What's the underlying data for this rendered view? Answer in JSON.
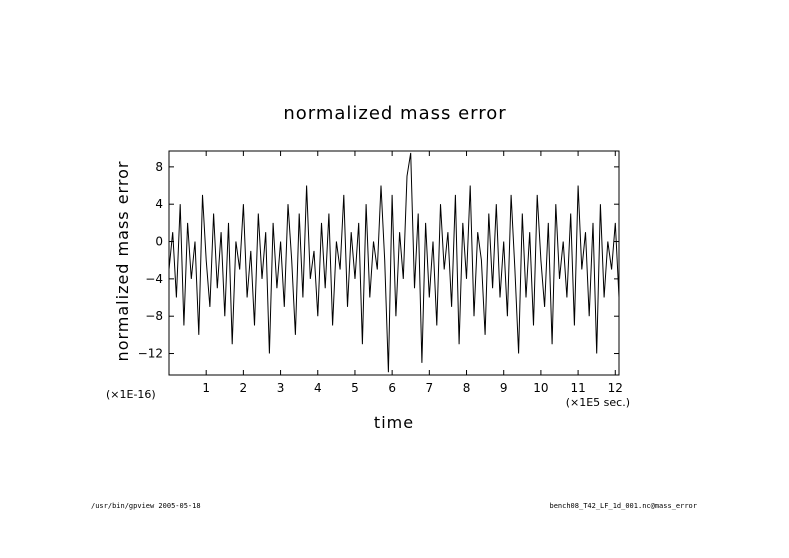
{
  "chart_data": {
    "type": "line",
    "title": "normalized mass error",
    "xlabel": "time",
    "ylabel": "normalized mass error",
    "x_multiplier_label": "(×1E5 sec.)",
    "y_multiplier_label": "(×1E-16)",
    "xlim": [
      0,
      12.1
    ],
    "ylim": [
      -14.3,
      9.7
    ],
    "xticks": [
      1,
      2,
      3,
      4,
      5,
      6,
      7,
      8,
      9,
      10,
      11,
      12
    ],
    "yticks": [
      8,
      4,
      0,
      -4,
      -8,
      -12
    ],
    "grid": false,
    "series": [
      {
        "x": [
          0.0,
          0.1,
          0.2,
          0.3,
          0.4,
          0.5,
          0.6,
          0.7,
          0.8,
          0.9,
          1.0,
          1.1,
          1.2,
          1.3,
          1.4,
          1.5,
          1.6,
          1.7,
          1.8,
          1.9,
          2.0,
          2.1,
          2.2,
          2.3,
          2.4,
          2.5,
          2.6,
          2.7,
          2.8,
          2.9,
          3.0,
          3.1,
          3.2,
          3.3,
          3.4,
          3.5,
          3.6,
          3.7,
          3.8,
          3.9,
          4.0,
          4.1,
          4.2,
          4.3,
          4.4,
          4.5,
          4.6,
          4.7,
          4.8,
          4.9,
          5.0,
          5.1,
          5.2,
          5.3,
          5.4,
          5.5,
          5.6,
          5.7,
          5.8,
          5.9,
          6.0,
          6.1,
          6.2,
          6.3,
          6.4,
          6.5,
          6.6,
          6.7,
          6.8,
          6.9,
          7.0,
          7.1,
          7.2,
          7.3,
          7.4,
          7.5,
          7.6,
          7.7,
          7.8,
          7.9,
          8.0,
          8.1,
          8.2,
          8.3,
          8.4,
          8.5,
          8.6,
          8.7,
          8.8,
          8.9,
          9.0,
          9.1,
          9.2,
          9.3,
          9.4,
          9.5,
          9.6,
          9.7,
          9.8,
          9.9,
          10.0,
          10.1,
          10.2,
          10.3,
          10.4,
          10.5,
          10.6,
          10.7,
          10.8,
          10.9,
          11.0,
          11.1,
          11.2,
          11.3,
          11.4,
          11.5,
          11.6,
          11.7,
          11.8,
          11.9,
          12.0,
          12.1
        ],
        "values": [
          -3,
          1,
          -6,
          4,
          -9,
          2,
          -4,
          0,
          -10,
          5,
          -2,
          -7,
          3,
          -5,
          1,
          -8,
          2,
          -11,
          0,
          -3,
          4,
          -6,
          -1,
          -9,
          3,
          -4,
          1,
          -12,
          2,
          -5,
          0,
          -7,
          4,
          -2,
          -10,
          3,
          -6,
          6,
          -4,
          -1,
          -8,
          2,
          -5,
          3,
          -9,
          0,
          -3,
          5,
          -7,
          1,
          -4,
          2,
          -11,
          4,
          -6,
          0,
          -3,
          6,
          -2,
          -14,
          5,
          -8,
          1,
          -4,
          7,
          9.5,
          -5,
          3,
          -13,
          2,
          -6,
          0,
          -9,
          4,
          -3,
          1,
          -7,
          5,
          -11,
          2,
          -4,
          6,
          -8,
          1,
          -2,
          -10,
          3,
          -5,
          4,
          -6,
          0,
          -8,
          5,
          -3,
          -12,
          3,
          -6,
          1,
          -9,
          5,
          -2,
          -7,
          2,
          -11,
          4,
          -4,
          0,
          -6,
          3,
          -9,
          6,
          -3,
          1,
          -8,
          2,
          -12,
          4,
          -6,
          0,
          -3,
          2,
          -6
        ]
      }
    ]
  },
  "footer": {
    "left": "/usr/bin/gpview  2005-05-18",
    "right": "bench08_T42_LF_1d_001.nc@mass_error"
  }
}
